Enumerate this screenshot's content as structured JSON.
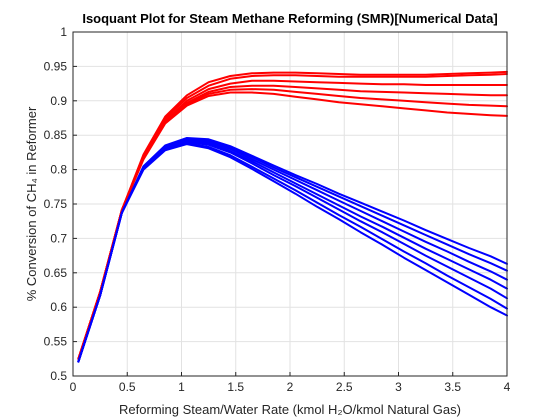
{
  "chart_data": {
    "type": "line",
    "title": "Isoquant Plot for Steam Methane Reforming (SMR)[Numerical Data]",
    "xlabel": "Reforming Steam/Water Rate (kmol H₂O/kmol Natural Gas)",
    "ylabel": "% Conversion of CH₄ in Reformer",
    "xlim": [
      0,
      4
    ],
    "ylim": [
      0.5,
      1
    ],
    "xticks": [
      "0",
      "0.5",
      "1",
      "1.5",
      "2",
      "2.5",
      "3",
      "3.5",
      "4"
    ],
    "yticks": [
      "0.5",
      "0.55",
      "0.6",
      "0.65",
      "0.7",
      "0.75",
      "0.8",
      "0.85",
      "0.9",
      "0.95",
      "1"
    ],
    "grid": true,
    "colors": {
      "red_group": "#ff0000",
      "blue_group": "#0000ff"
    },
    "x": [
      0.05,
      0.25,
      0.45,
      0.65,
      0.85,
      1.05,
      1.25,
      1.45,
      1.65,
      1.85,
      2.05,
      2.25,
      2.45,
      2.65,
      2.85,
      3.05,
      3.25,
      3.45,
      3.65,
      3.85,
      4.0
    ],
    "series": [
      {
        "color": "#ff0000",
        "values": [
          0.525,
          0.622,
          0.741,
          0.815,
          0.867,
          0.893,
          0.907,
          0.912,
          0.912,
          0.91,
          0.906,
          0.902,
          0.898,
          0.895,
          0.892,
          0.889,
          0.886,
          0.883,
          0.881,
          0.879,
          0.878
        ]
      },
      {
        "color": "#ff0000",
        "values": [
          0.525,
          0.622,
          0.741,
          0.816,
          0.868,
          0.895,
          0.91,
          0.916,
          0.917,
          0.916,
          0.913,
          0.91,
          0.907,
          0.904,
          0.902,
          0.9,
          0.898,
          0.896,
          0.894,
          0.893,
          0.892
        ]
      },
      {
        "color": "#ff0000",
        "values": [
          0.525,
          0.622,
          0.741,
          0.817,
          0.869,
          0.897,
          0.913,
          0.92,
          0.922,
          0.922,
          0.92,
          0.918,
          0.916,
          0.914,
          0.913,
          0.912,
          0.911,
          0.91,
          0.909,
          0.908,
          0.908
        ]
      },
      {
        "color": "#ff0000",
        "values": [
          0.525,
          0.622,
          0.741,
          0.818,
          0.871,
          0.9,
          0.917,
          0.925,
          0.929,
          0.929,
          0.928,
          0.927,
          0.926,
          0.925,
          0.924,
          0.924,
          0.923,
          0.923,
          0.923,
          0.923,
          0.923
        ]
      },
      {
        "color": "#ff0000",
        "values": [
          0.525,
          0.622,
          0.741,
          0.82,
          0.874,
          0.904,
          0.922,
          0.932,
          0.936,
          0.937,
          0.937,
          0.936,
          0.935,
          0.935,
          0.935,
          0.935,
          0.935,
          0.936,
          0.937,
          0.938,
          0.939
        ]
      },
      {
        "color": "#ff0000",
        "values": [
          0.525,
          0.622,
          0.741,
          0.822,
          0.877,
          0.908,
          0.927,
          0.936,
          0.94,
          0.941,
          0.941,
          0.94,
          0.939,
          0.938,
          0.938,
          0.938,
          0.938,
          0.939,
          0.94,
          0.941,
          0.942
        ]
      },
      {
        "color": "#0000ff",
        "values": [
          0.521,
          0.617,
          0.737,
          0.805,
          0.835,
          0.846,
          0.844,
          0.834,
          0.82,
          0.806,
          0.792,
          0.779,
          0.765,
          0.752,
          0.739,
          0.726,
          0.712,
          0.699,
          0.686,
          0.674,
          0.663
        ]
      },
      {
        "color": "#0000ff",
        "values": [
          0.521,
          0.617,
          0.737,
          0.804,
          0.834,
          0.845,
          0.842,
          0.832,
          0.818,
          0.803,
          0.789,
          0.775,
          0.761,
          0.747,
          0.733,
          0.719,
          0.705,
          0.691,
          0.677,
          0.664,
          0.653
        ]
      },
      {
        "color": "#0000ff",
        "values": [
          0.521,
          0.617,
          0.737,
          0.803,
          0.832,
          0.843,
          0.84,
          0.83,
          0.815,
          0.8,
          0.785,
          0.77,
          0.755,
          0.74,
          0.725,
          0.71,
          0.695,
          0.681,
          0.666,
          0.652,
          0.64
        ]
      },
      {
        "color": "#0000ff",
        "values": [
          0.521,
          0.617,
          0.737,
          0.803,
          0.831,
          0.842,
          0.838,
          0.827,
          0.812,
          0.796,
          0.78,
          0.764,
          0.748,
          0.732,
          0.717,
          0.701,
          0.685,
          0.67,
          0.655,
          0.64,
          0.627
        ]
      },
      {
        "color": "#0000ff",
        "values": [
          0.521,
          0.617,
          0.737,
          0.802,
          0.83,
          0.84,
          0.836,
          0.825,
          0.809,
          0.792,
          0.776,
          0.759,
          0.742,
          0.725,
          0.709,
          0.692,
          0.675,
          0.659,
          0.643,
          0.627,
          0.613
        ]
      },
      {
        "color": "#0000ff",
        "values": [
          0.521,
          0.617,
          0.737,
          0.801,
          0.829,
          0.838,
          0.833,
          0.821,
          0.804,
          0.787,
          0.77,
          0.752,
          0.734,
          0.717,
          0.699,
          0.681,
          0.664,
          0.646,
          0.629,
          0.612,
          0.598
        ]
      },
      {
        "color": "#0000ff",
        "values": [
          0.521,
          0.617,
          0.737,
          0.8,
          0.828,
          0.837,
          0.831,
          0.818,
          0.801,
          0.783,
          0.765,
          0.746,
          0.728,
          0.709,
          0.691,
          0.672,
          0.654,
          0.636,
          0.618,
          0.6,
          0.588
        ]
      }
    ]
  }
}
